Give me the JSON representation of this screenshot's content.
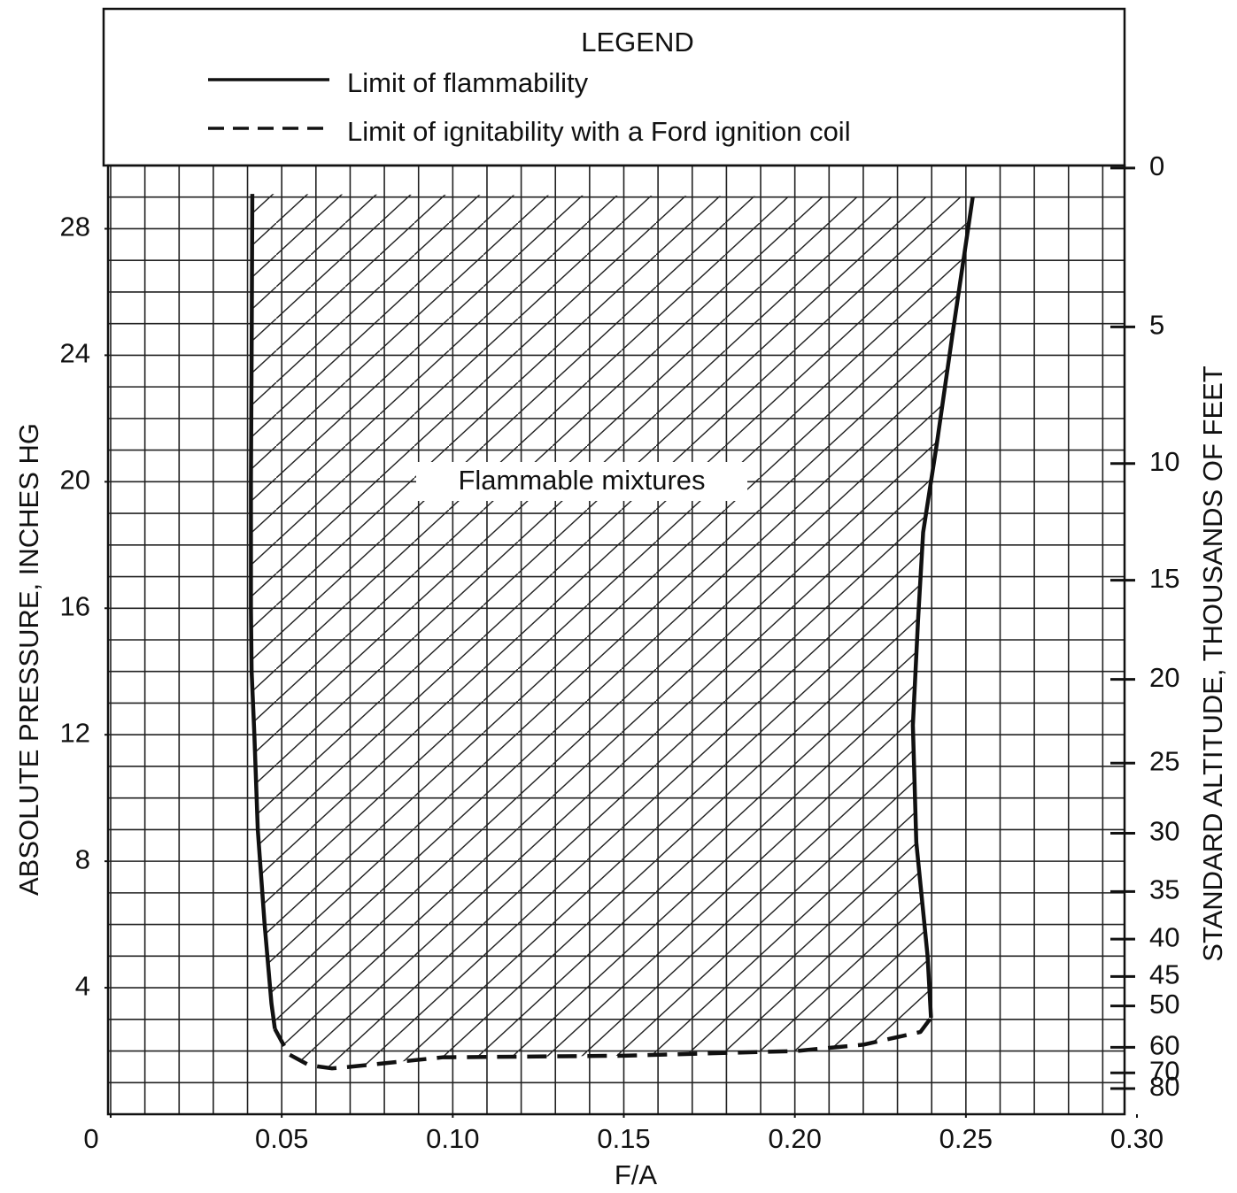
{
  "chart_data": {
    "type": "line",
    "legend_title": "LEGEND",
    "annotation": "Flammable mixtures",
    "xlabel": "F/A",
    "ylabel": "ABSOLUTE PRESSURE, INCHES HG",
    "y2label": "STANDARD ALTITUDE, THOUSANDS OF FEET",
    "xlim": [
      0,
      0.3
    ],
    "ylim": [
      0,
      30
    ],
    "xticks": [
      0,
      {
        "value": 0.05,
        "label": "0.05"
      },
      {
        "value": 0.1,
        "label": "0.10"
      },
      {
        "value": 0.15,
        "label": "0.15"
      },
      {
        "value": 0.2,
        "label": "0.20"
      },
      {
        "value": 0.25,
        "label": "0.25"
      },
      {
        "value": 0.3,
        "label": "0.30"
      }
    ],
    "yticks": [
      4,
      8,
      12,
      16,
      20,
      24,
      28
    ],
    "y2scale": "standard atmosphere",
    "y2ticks": [
      0,
      5,
      10,
      15,
      20,
      25,
      30,
      35,
      40,
      45,
      50,
      60,
      70,
      80
    ],
    "grid": true,
    "minor_grid": {
      "x": 0.01,
      "y": 1
    },
    "hatch": true,
    "color": "#111111",
    "series": [
      {
        "name": "Limit of flammability",
        "style": "solid",
        "color": "#111111",
        "pieces": [
          {
            "x": [
              0.0414,
              0.0412,
              0.041,
              0.041,
              0.0412,
              0.042,
              0.043,
              0.045,
              0.047,
              0.048
            ],
            "y": [
              29.1,
              24,
              20,
              16,
              14,
              12,
              9,
              6,
              3.5,
              2.7
            ]
          },
          {
            "x": [
              0.2398,
              0.2388,
              0.2355,
              0.2345,
              0.236,
              0.2375,
              0.2415,
              0.246,
              0.252
            ],
            "y": [
              3.05,
              5,
              8.6,
              12.3,
              15.6,
              18.4,
              21.2,
              24.6,
              29
            ]
          }
        ]
      },
      {
        "name": "Limit of ignitability with a Ford ignition coil",
        "style": "dashed",
        "color": "#111111",
        "pieces": [
          {
            "x": [
              0.048,
              0.052,
              0.058,
              0.0647,
              0.07,
              0.097,
              0.15,
              0.2005,
              0.22,
              0.2367,
              0.2398
            ],
            "y": [
              2.7,
              1.9,
              1.55,
              1.45,
              1.5,
              1.8,
              1.85,
              2.0,
              2.2,
              2.6,
              3.05
            ]
          }
        ]
      }
    ]
  }
}
